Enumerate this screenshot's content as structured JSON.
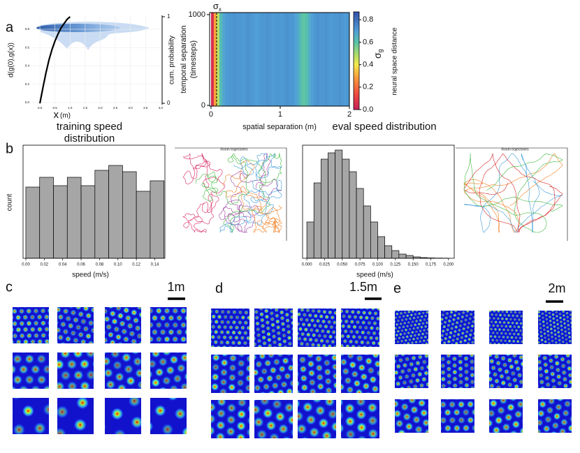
{
  "panel_labels": [
    "a",
    "b",
    "c",
    "d",
    "e"
  ],
  "charts": [
    {
      "type": "density",
      "ylabel": "d(g(0),g(x))",
      "xlabel": "x",
      "xunit": "(m)",
      "y2label": "cum. probability",
      "xlim": [
        -0.28,
        4.05
      ],
      "xticks": [
        {
          "value": 0,
          "label": "0.0"
        },
        {
          "value": 0.5,
          "label": "0.5"
        },
        {
          "value": 1,
          "label": "1.0"
        },
        {
          "value": 1.5,
          "label": "1.5"
        },
        {
          "value": 2,
          "label": "2.0"
        },
        {
          "value": 2.5,
          "label": "2.5"
        },
        {
          "value": 3,
          "label": "3.0"
        },
        {
          "value": 3.5,
          "label": "3.5"
        },
        {
          "value": 4,
          "label": "4.0"
        }
      ],
      "ylim": [
        -0.023,
        0.952
      ],
      "yticks": [
        {
          "value": 0,
          "label": "0.0"
        },
        {
          "value": 0.2,
          "label": "0.2"
        },
        {
          "value": 0.4,
          "label": "0.4"
        },
        {
          "value": 0.6,
          "label": "0.6"
        },
        {
          "value": 0.8,
          "label": "0.8"
        }
      ],
      "y2lim": [
        -0.016,
        1.016
      ],
      "y2ticks": [
        0,
        1
      ],
      "grid": true,
      "cumulative": {
        "axis": "y2",
        "color": "#000000",
        "x": [
          0,
          0.1,
          0.2,
          0.3,
          0.4,
          0.5,
          0.6,
          0.7,
          0.8,
          0.9,
          1.0
        ],
        "values": [
          0,
          0.18,
          0.35,
          0.5,
          0.62,
          0.72,
          0.8,
          0.87,
          0.92,
          0.97,
          1.0
        ]
      }
    },
    {
      "type": "heatmap",
      "xlabel": "spatial separation (m)",
      "ylabel": [
        "temporal separation",
        "(timesteps)"
      ],
      "xlim": [
        -0.02,
        2.0
      ],
      "xticks": [
        0,
        1,
        2
      ],
      "ylim": [
        -8,
        1023
      ],
      "yticks": [
        0,
        1000
      ],
      "sigma_x": {
        "symbol": "σ",
        "sub": "x",
        "value": 0.08
      },
      "sigma_g": {
        "symbol": "σ",
        "sub": "g"
      },
      "colorbar": {
        "label": "neural space distance",
        "lim": [
          0,
          0.87
        ],
        "ticks": [
          {
            "value": 0,
            "label": "0.0"
          },
          {
            "value": 0.2,
            "label": "0.2"
          },
          {
            "value": 0.4,
            "label": "0.4"
          },
          {
            "value": 0.6,
            "label": "0.6"
          },
          {
            "value": 0.8,
            "label": "0.8"
          }
        ]
      },
      "x": [
        0,
        0.04,
        0.08,
        0.12,
        0.16,
        0.2,
        0.24,
        0.28,
        0.32,
        0.36,
        0.4,
        0.44,
        0.48,
        0.52,
        0.56,
        0.6,
        0.64,
        0.68,
        0.72,
        0.76,
        0.8,
        0.84,
        0.88,
        0.92,
        0.96,
        1.0,
        1.04,
        1.08,
        1.12,
        1.16,
        1.2,
        1.24,
        1.28,
        1.32,
        1.36,
        1.4,
        1.44,
        1.48,
        1.52,
        1.56,
        1.6,
        1.64,
        1.68,
        1.72,
        1.76,
        1.8,
        1.84,
        1.88,
        1.92,
        1.96,
        2.0
      ],
      "values": [
        0.05,
        0.3,
        0.47,
        0.62,
        0.68,
        0.71,
        0.72,
        0.72,
        0.73,
        0.72,
        0.72,
        0.71,
        0.72,
        0.73,
        0.72,
        0.71,
        0.7,
        0.71,
        0.72,
        0.72,
        0.73,
        0.72,
        0.71,
        0.72,
        0.72,
        0.71,
        0.72,
        0.73,
        0.72,
        0.72,
        0.7,
        0.67,
        0.62,
        0.59,
        0.61,
        0.66,
        0.7,
        0.72,
        0.73,
        0.72,
        0.72,
        0.73,
        0.72,
        0.71,
        0.72,
        0.72,
        0.73,
        0.72,
        0.71,
        0.72
      ]
    },
    {
      "type": "histogram",
      "title": "training speed distribution",
      "xlabel": "speed (m/s)",
      "ylabel": "count",
      "color": "#a6a6a6",
      "xlim": [
        -0.003,
        0.151
      ],
      "xticks": [
        {
          "value": 0,
          "label": "0.00"
        },
        {
          "value": 0.02,
          "label": "0.02"
        },
        {
          "value": 0.04,
          "label": "0.04"
        },
        {
          "value": 0.06,
          "label": "0.06"
        },
        {
          "value": 0.08,
          "label": "0.08"
        },
        {
          "value": 0.1,
          "label": "0.10"
        },
        {
          "value": 0.12,
          "label": "0.12"
        },
        {
          "value": 0.14,
          "label": "0.14"
        }
      ],
      "ylim": [
        0,
        162
      ],
      "bins": [
        0,
        0.015,
        0.03,
        0.045,
        0.06,
        0.075,
        0.09,
        0.105,
        0.12,
        0.135,
        0.15
      ],
      "values": [
        102,
        116,
        104,
        116,
        104,
        126,
        133,
        124,
        96,
        111
      ],
      "inset_title": "Room trajectories"
    },
    {
      "type": "histogram",
      "title": "eval speed distribution",
      "xlabel": "speed (m/s)",
      "color": "#a6a6a6",
      "xlim": [
        -0.006,
        0.208
      ],
      "xticks": [
        {
          "value": 0,
          "label": "0.000"
        },
        {
          "value": 0.025,
          "label": "0.025"
        },
        {
          "value": 0.05,
          "label": "0.050"
        },
        {
          "value": 0.075,
          "label": "0.075"
        },
        {
          "value": 0.1,
          "label": "0.100"
        },
        {
          "value": 0.125,
          "label": "0.125"
        },
        {
          "value": 0.15,
          "label": "0.150"
        },
        {
          "value": 0.175,
          "label": "0.175"
        },
        {
          "value": 0.2,
          "label": "0.200"
        }
      ],
      "ylim": [
        0,
        162
      ],
      "bins": [
        0,
        0.01,
        0.02,
        0.03,
        0.04,
        0.05,
        0.06,
        0.07,
        0.08,
        0.09,
        0.1,
        0.11,
        0.12,
        0.13,
        0.14,
        0.15,
        0.16,
        0.17,
        0.18,
        0.19,
        0.2
      ],
      "values": [
        52,
        108,
        142,
        151,
        155,
        142,
        124,
        100,
        75,
        52,
        31,
        18,
        11,
        6,
        4,
        2,
        1,
        0.5,
        0.3,
        0.2
      ],
      "inset_title": "Room trajectories"
    }
  ],
  "rate_maps": {
    "scale_bars": [
      "1m",
      "1.5m",
      "2m"
    ]
  }
}
